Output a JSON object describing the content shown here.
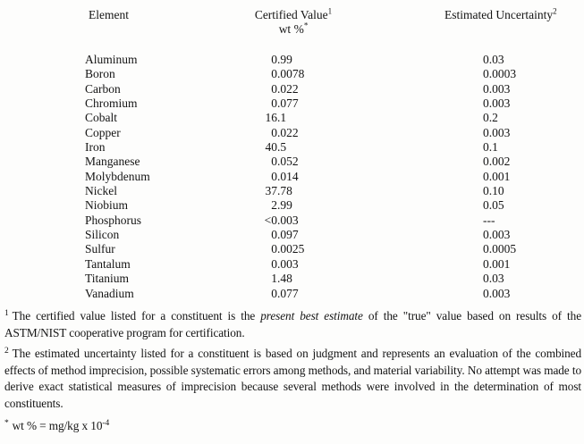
{
  "table": {
    "headers": {
      "element": "Element",
      "certified_value": "Certified Value",
      "certified_value_sup": "1",
      "certified_value_unit": "wt %",
      "certified_value_unit_sup": "*",
      "uncertainty": "Estimated Uncertainty",
      "uncertainty_sup": "2"
    },
    "rows": [
      {
        "element": "Aluminum",
        "value": "0.99",
        "uncertainty": "0.03"
      },
      {
        "element": "Boron",
        "value": "0.0078",
        "uncertainty": "0.0003"
      },
      {
        "element": "Carbon",
        "value": "0.022",
        "uncertainty": "0.003"
      },
      {
        "element": "Chromium",
        "value": "0.077",
        "uncertainty": "0.003"
      },
      {
        "element": "Cobalt",
        "value": "16.1",
        "uncertainty": "0.2"
      },
      {
        "element": "Copper",
        "value": "0.022",
        "uncertainty": "0.003"
      },
      {
        "element": "Iron",
        "value": "40.5",
        "uncertainty": "0.1"
      },
      {
        "element": "Manganese",
        "value": "0.052",
        "uncertainty": "0.002"
      },
      {
        "element": "Molybdenum",
        "value": "0.014",
        "uncertainty": "0.001"
      },
      {
        "element": "Nickel",
        "value": "37.78",
        "uncertainty": "0.10"
      },
      {
        "element": "Niobium",
        "value": "2.99",
        "uncertainty": "0.05"
      },
      {
        "element": "Phosphorus",
        "value": "<0.003",
        "uncertainty": "---"
      },
      {
        "element": "Silicon",
        "value": "0.097",
        "uncertainty": "0.003"
      },
      {
        "element": "Sulfur",
        "value": "0.0025",
        "uncertainty": "0.0005"
      },
      {
        "element": "Tantalum",
        "value": "0.003",
        "uncertainty": "0.001"
      },
      {
        "element": "Titanium",
        "value": "1.48",
        "uncertainty": "0.03"
      },
      {
        "element": "Vanadium",
        "value": "0.077",
        "uncertainty": "0.003"
      }
    ]
  },
  "footnotes": {
    "note1": {
      "marker": "1",
      "text_pre": "The certified value listed for a constituent is the ",
      "text_italic": "present best estimate",
      "text_post": " of the \"true\" value based on results of the ASTM/NIST cooperative program for certification."
    },
    "note2": {
      "marker": "2",
      "text": "The estimated uncertainty listed for a constituent is based on judgment and represents an evaluation of the combined effects of method imprecision, possible systematic errors among methods, and material variability.  No attempt was made to derive exact statistical measures of imprecision because several methods were involved in the determination of most constituents."
    },
    "unit_note": {
      "marker": "*",
      "text": "wt % = mg/kg x 10",
      "exponent": "-4"
    }
  },
  "colors": {
    "text": "#141414",
    "background": "#fdfdfc"
  }
}
